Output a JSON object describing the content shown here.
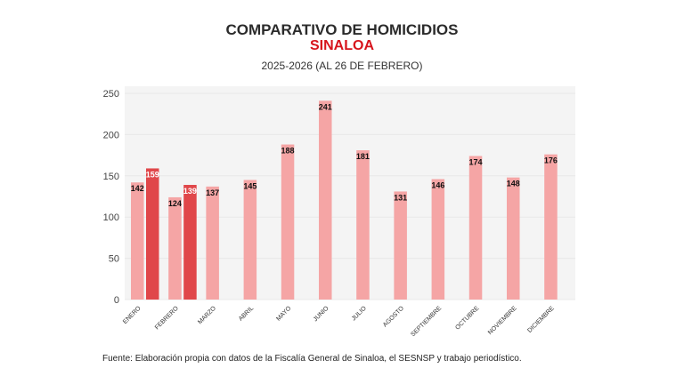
{
  "chart_data": {
    "type": "bar",
    "title": "COMPARATIVO DE HOMICIDIOS",
    "subtitle": "SINALOA",
    "period": "2025-2026 (AL 26 DE FEBRERO)",
    "categories": [
      "ENERO",
      "FEBRERO",
      "MARZO",
      "ABRIL",
      "MAYO",
      "JUNIO",
      "JULIO",
      "AGOSTO",
      "SEPTIEMBRE",
      "OCTUBRE",
      "NOVIEMBRE",
      "DICIEMBRE"
    ],
    "series": [
      {
        "values": [
          142,
          124,
          137,
          145,
          188,
          241,
          181,
          131,
          146,
          174,
          148,
          176
        ],
        "color": "#f5a5a5"
      },
      {
        "values": [
          159,
          139,
          null,
          null,
          null,
          null,
          null,
          null,
          null,
          null,
          null,
          null
        ],
        "color": "#e0474a"
      }
    ],
    "yticks": [
      0,
      50,
      100,
      150,
      200,
      250
    ],
    "ylim": [
      0,
      250
    ],
    "xlabel": "",
    "ylabel": "",
    "grid": true,
    "data_labels": true,
    "plot_background": "#f4f4f4"
  },
  "source": "Fuente: Elaboración propia con datos de la Fiscalía General de Sinaloa, el SESNSP y trabajo periodístico."
}
